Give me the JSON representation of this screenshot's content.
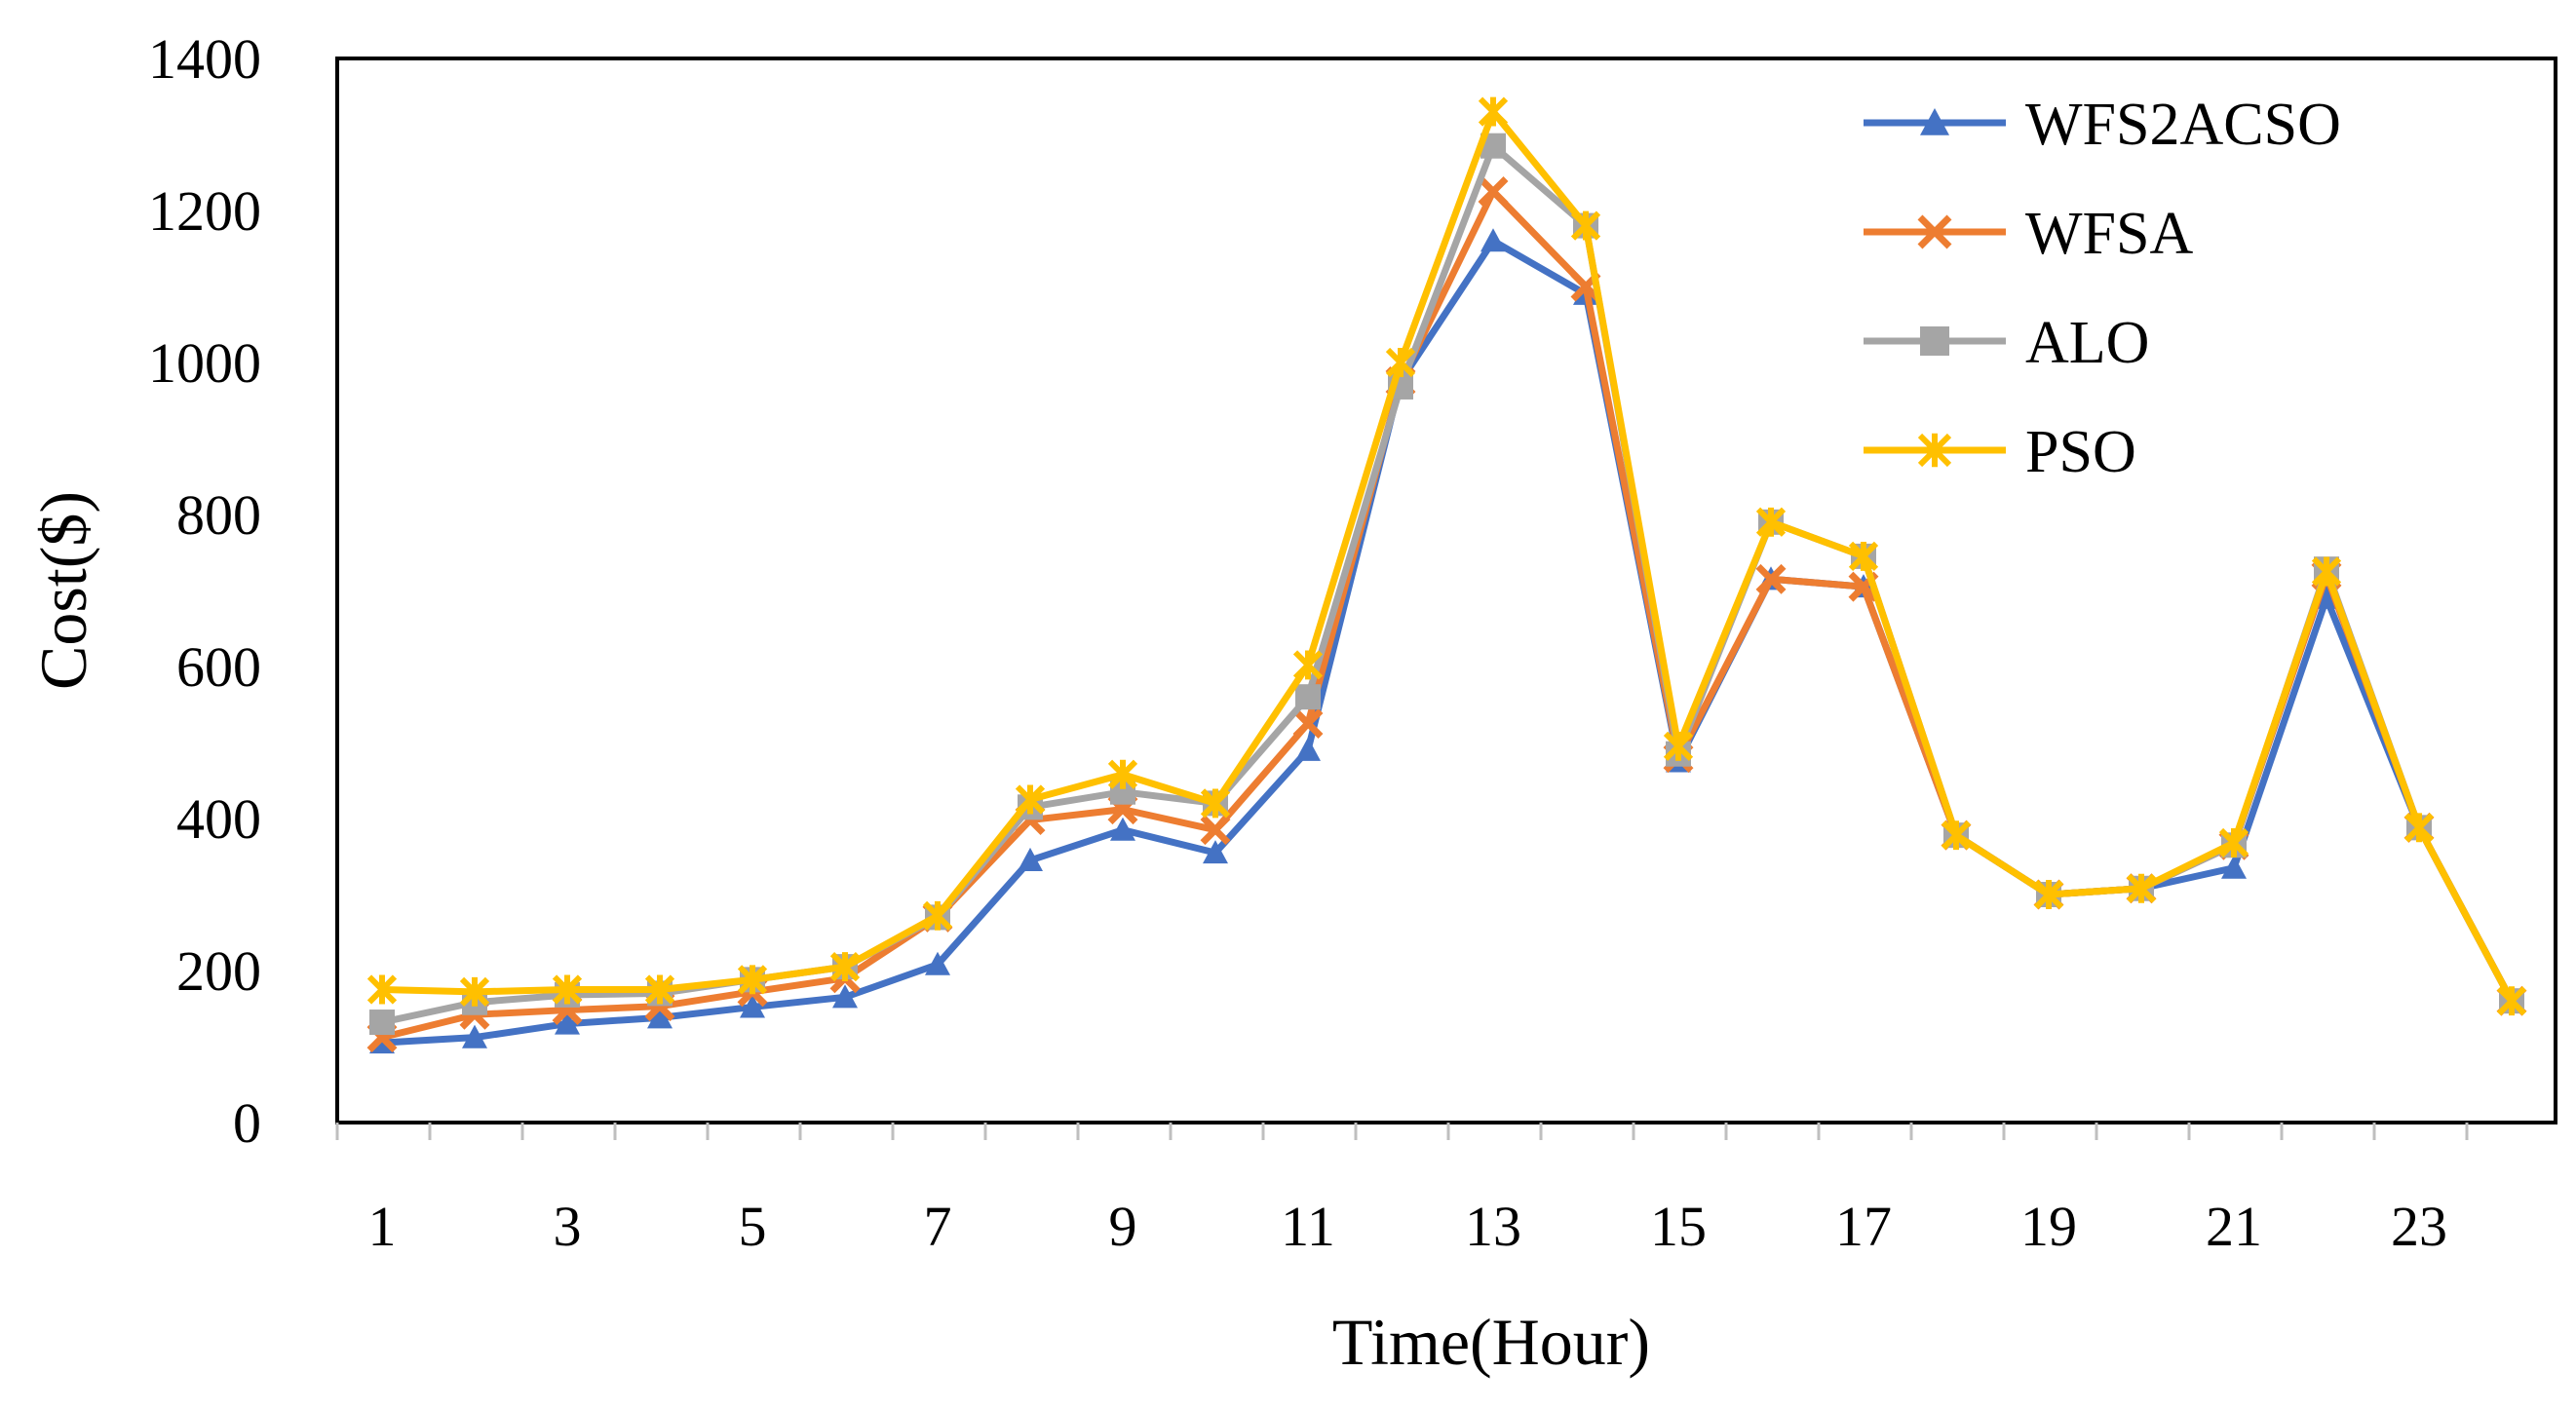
{
  "chart_data": {
    "type": "line",
    "title": "",
    "xlabel": "Time(Hour)",
    "ylabel": "Cost($)",
    "x": [
      1,
      2,
      3,
      4,
      5,
      6,
      7,
      8,
      9,
      10,
      11,
      12,
      13,
      14,
      15,
      16,
      17,
      18,
      19,
      20,
      21,
      22,
      23,
      24
    ],
    "x_tick_labels": [
      "1",
      "3",
      "5",
      "7",
      "9",
      "11",
      "13",
      "15",
      "17",
      "19",
      "21",
      "23"
    ],
    "ylim": [
      0,
      1400
    ],
    "y_ticks": [
      0,
      200,
      400,
      600,
      800,
      1000,
      1200,
      1400
    ],
    "grid": false,
    "legend_position": "top-right",
    "series": [
      {
        "name": "WFS2ACSO",
        "color": "#4472C4",
        "marker": "triangle",
        "values": [
          105,
          112,
          130,
          138,
          152,
          165,
          208,
          345,
          385,
          355,
          490,
          975,
          1160,
          1090,
          475,
          715,
          705,
          378,
          300,
          308,
          335,
          690,
          388,
          160
        ]
      },
      {
        "name": "WFSA",
        "color": "#ED7D31",
        "marker": "x",
        "values": [
          112,
          142,
          148,
          153,
          172,
          190,
          270,
          398,
          412,
          385,
          525,
          975,
          1225,
          1100,
          480,
          715,
          705,
          378,
          300,
          308,
          365,
          720,
          388,
          160
        ]
      },
      {
        "name": "ALO",
        "color": "#A5A5A5",
        "marker": "square",
        "values": [
          132,
          158,
          168,
          170,
          188,
          205,
          270,
          415,
          435,
          420,
          560,
          968,
          1285,
          1180,
          485,
          790,
          745,
          378,
          300,
          308,
          365,
          728,
          388,
          160
        ]
      },
      {
        "name": "PSO",
        "color": "#FFC000",
        "marker": "star",
        "values": [
          175,
          172,
          175,
          175,
          188,
          205,
          272,
          425,
          458,
          420,
          602,
          1000,
          1330,
          1180,
          495,
          790,
          745,
          378,
          300,
          308,
          368,
          725,
          388,
          160
        ]
      }
    ]
  }
}
